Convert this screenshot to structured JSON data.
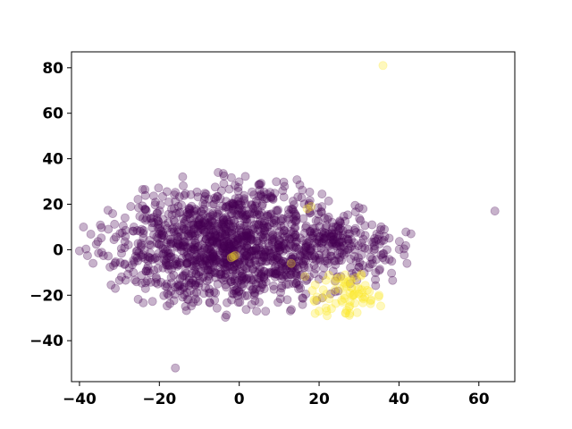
{
  "chart_data": {
    "type": "scatter",
    "title": "",
    "xlabel": "",
    "ylabel": "",
    "xlim": [
      -42,
      69
    ],
    "ylim": [
      -58,
      87
    ],
    "grid": false,
    "legend": "none",
    "x_ticks": [
      -40,
      -20,
      0,
      20,
      40,
      60
    ],
    "y_ticks": [
      -40,
      -20,
      0,
      20,
      40,
      60,
      80
    ],
    "x_tick_labels": [
      "−40",
      "−20",
      "0",
      "20",
      "40",
      "60"
    ],
    "y_tick_labels": [
      "−40",
      "−20",
      "0",
      "20",
      "40",
      "60",
      "80"
    ],
    "point_opacity": 0.3,
    "clusters": [
      {
        "class": "main",
        "color": "#440154",
        "count": 1350,
        "center": [
          -2,
          2
        ],
        "spread": [
          15,
          13.5
        ],
        "extent": [
          [
            -40,
            30
          ],
          [
            -37,
            35
          ]
        ]
      },
      {
        "class": "dense",
        "color": "#440154",
        "count": 90,
        "center": [
          24,
          4
        ],
        "spread": [
          5,
          5
        ],
        "extent": [
          [
            14,
            36
          ],
          [
            -6,
            16
          ]
        ]
      },
      {
        "class": "tail",
        "color": "#440154",
        "count": 60,
        "center": [
          33,
          -2
        ],
        "spread": [
          5,
          8
        ],
        "extent": [
          [
            28,
            44
          ],
          [
            -16,
            14
          ]
        ]
      },
      {
        "class": "minority",
        "color": "#fde725",
        "count": 70,
        "center": [
          27,
          -19
        ],
        "spread": [
          5,
          5
        ],
        "extent": [
          [
            16,
            36
          ],
          [
            -30,
            -10
          ]
        ]
      }
    ],
    "highlight_points": [
      {
        "x": -39,
        "y": 10,
        "color": "#440154"
      },
      {
        "x": -40,
        "y": -0.5,
        "color": "#440154"
      },
      {
        "x": -16,
        "y": -52,
        "color": "#440154"
      },
      {
        "x": 64,
        "y": 17,
        "color": "#440154"
      },
      {
        "x": 43,
        "y": 7,
        "color": "#440154"
      },
      {
        "x": 42,
        "y": -6,
        "color": "#440154"
      },
      {
        "x": 30,
        "y": 18.5,
        "color": "#440154"
      },
      {
        "x": 29,
        "y": 19.5,
        "color": "#440154"
      },
      {
        "x": 31,
        "y": 18,
        "color": "#440154"
      },
      {
        "x": 37,
        "y": 0,
        "color": "#440154"
      },
      {
        "x": 36,
        "y": 81,
        "color": "#fde725"
      },
      {
        "x": 17,
        "y": 18,
        "color": "#fde725"
      },
      {
        "x": 18,
        "y": 19,
        "color": "#fde725"
      },
      {
        "x": -1.5,
        "y": -3,
        "color": "#fde725"
      },
      {
        "x": -2,
        "y": -3.5,
        "color": "#fde725"
      },
      {
        "x": -1,
        "y": -2.5,
        "color": "#fde725"
      },
      {
        "x": 13,
        "y": -6,
        "color": "#fde725"
      },
      {
        "x": 35,
        "y": -20,
        "color": "#fde725"
      },
      {
        "x": 33,
        "y": -22,
        "color": "#fde725"
      },
      {
        "x": 20,
        "y": -27,
        "color": "#fde725"
      },
      {
        "x": 19,
        "y": -28,
        "color": "#fde725"
      },
      {
        "x": 22,
        "y": -29,
        "color": "#fde725"
      }
    ]
  }
}
